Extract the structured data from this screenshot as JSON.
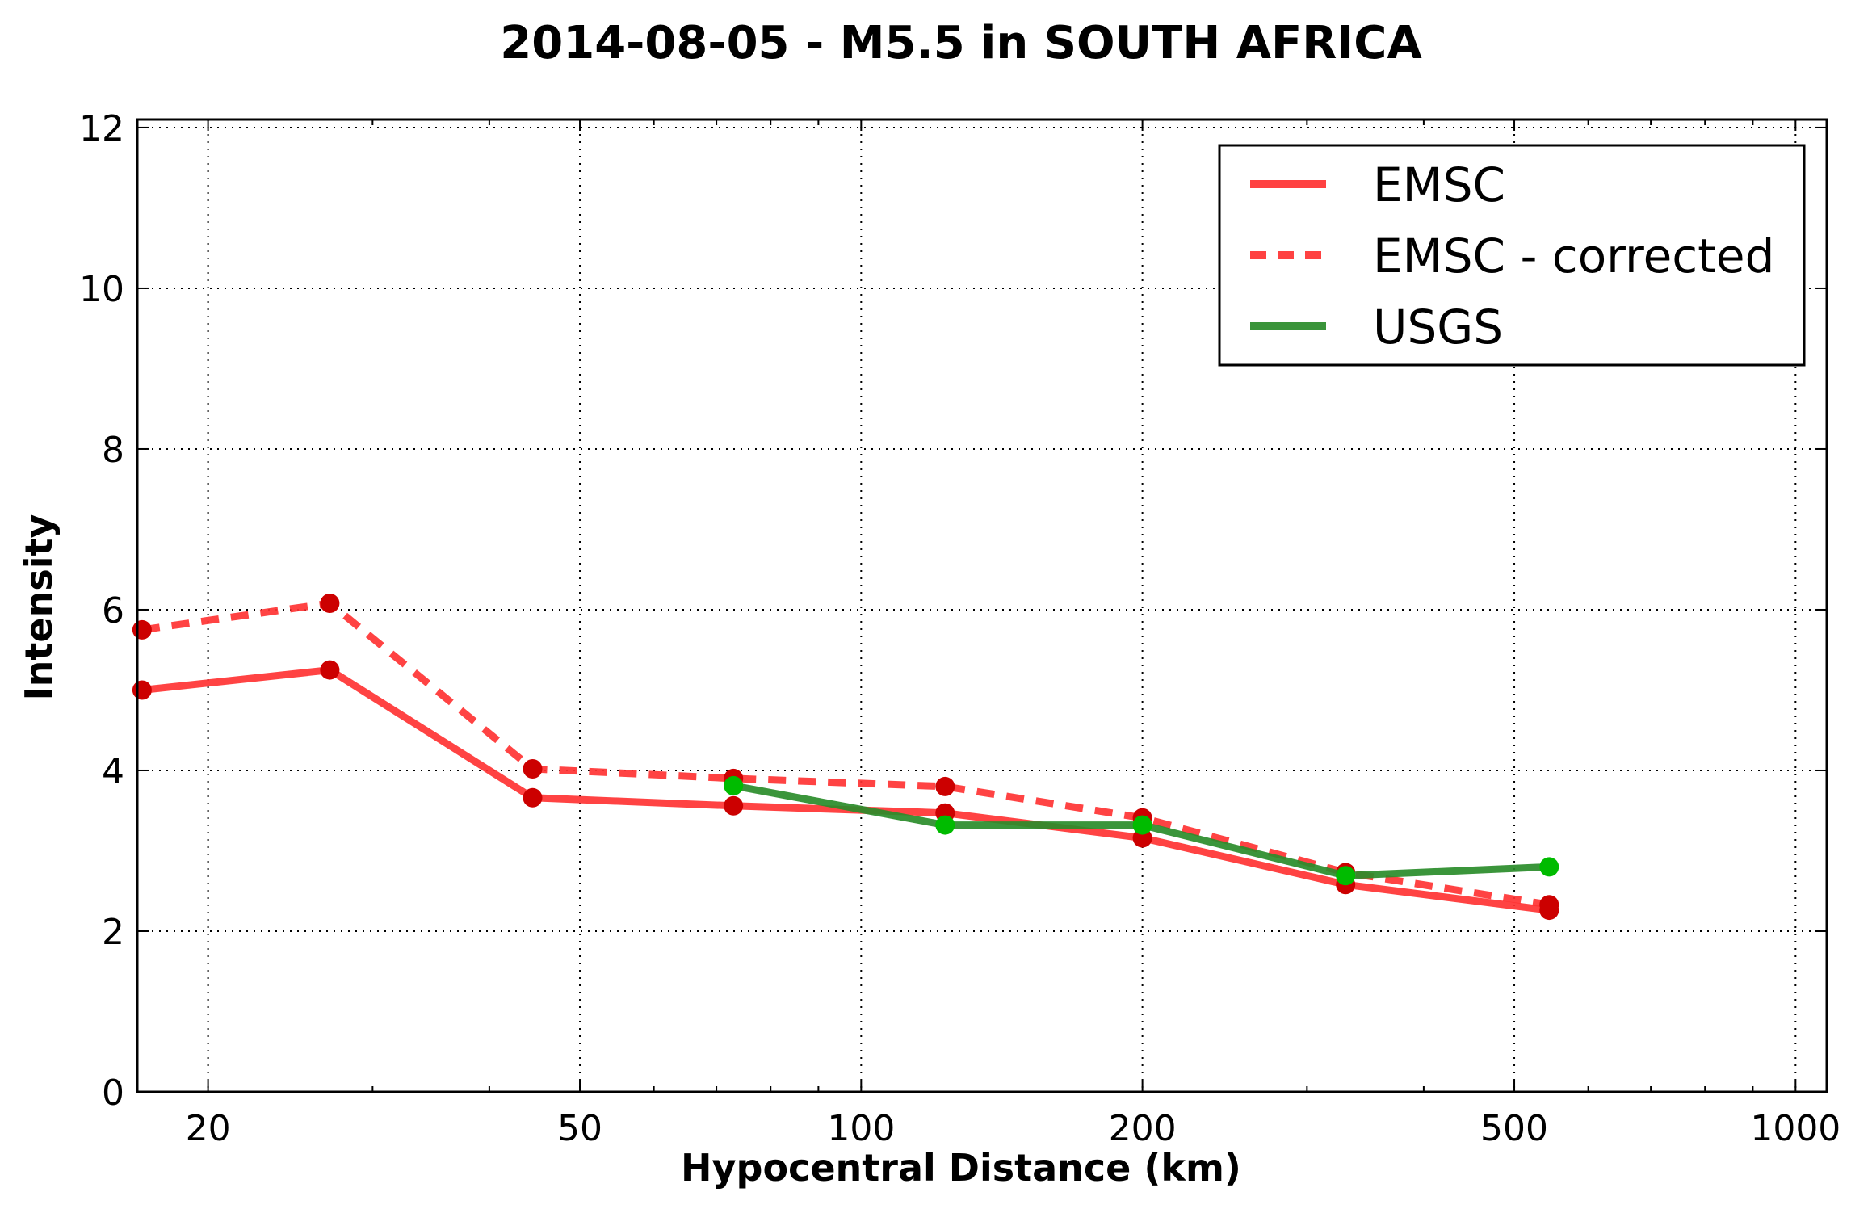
{
  "chart_data": {
    "type": "line",
    "title": "2014-08-05 - M5.5 in SOUTH AFRICA",
    "xlabel": "Hypocentral Distance (km)",
    "ylabel": "Intensity",
    "x_scale": "log",
    "xlim": [
      16.8,
      1080
    ],
    "ylim": [
      0,
      12.1
    ],
    "x_ticks": [
      20,
      50,
      100,
      200,
      500,
      1000
    ],
    "x_tick_labels": [
      "20",
      "50",
      "100",
      "200",
      "500",
      "1000"
    ],
    "y_ticks": [
      0,
      2,
      4,
      6,
      8,
      10,
      12
    ],
    "y_tick_labels": [
      "0",
      "2",
      "4",
      "6",
      "8",
      "10",
      "12"
    ],
    "grid": true,
    "legend_position": "top-right",
    "series": [
      {
        "name": "EMSC",
        "color": "#ff3333",
        "marker_color": "#cc0000",
        "style": "solid",
        "x": [
          17,
          27,
          44.5,
          73,
          123,
          200,
          330,
          545
        ],
        "y": [
          5.0,
          5.25,
          3.66,
          3.56,
          3.47,
          3.16,
          2.58,
          2.26
        ]
      },
      {
        "name": "EMSC - corrected",
        "color": "#ff3333",
        "marker_color": "#cc0000",
        "style": "dashed",
        "x": [
          17,
          27,
          44.5,
          73,
          123,
          200,
          330,
          545
        ],
        "y": [
          5.75,
          6.08,
          4.02,
          3.9,
          3.8,
          3.41,
          2.73,
          2.33
        ]
      },
      {
        "name": "USGS",
        "color": "#2a8c2a",
        "marker_color": "#00bb00",
        "style": "solid",
        "x": [
          73,
          123,
          200,
          330,
          545
        ],
        "y": [
          3.81,
          3.32,
          3.32,
          2.69,
          2.8
        ]
      }
    ]
  }
}
